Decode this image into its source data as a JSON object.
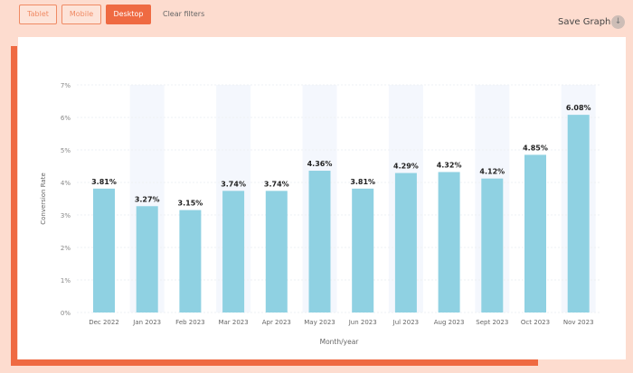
{
  "filters": {
    "tablet": "Tablet",
    "mobile": "Mobile",
    "desktop": "Desktop",
    "clear": "Clear filters",
    "active": "Desktop"
  },
  "save_graph": {
    "label": "Save Graph",
    "icon": "download-icon"
  },
  "colors": {
    "accent": "#ef6a42",
    "bar": "#8fd1e2",
    "band": "#f4f7fd"
  },
  "chart_data": {
    "type": "bar",
    "title": "",
    "xlabel": "Month/year",
    "ylabel": "Conversion Rate",
    "ylim": [
      0,
      7
    ],
    "yticks": [
      "0%",
      "1%",
      "2%",
      "3%",
      "4%",
      "5%",
      "6%",
      "7%"
    ],
    "categories": [
      "Dec 2022",
      "Jan 2023",
      "Feb 2023",
      "Mar 2023",
      "Apr 2023",
      "May 2023",
      "Jun 2023",
      "Jul 2023",
      "Aug 2023",
      "Sept 2023",
      "Oct 2023",
      "Nov 2023"
    ],
    "values": [
      3.81,
      3.27,
      3.15,
      3.74,
      3.74,
      4.36,
      3.81,
      4.29,
      4.32,
      4.12,
      4.85,
      6.08
    ],
    "labels": [
      "3.81%",
      "3.27%",
      "3.15%",
      "3.74%",
      "3.74%",
      "4.36%",
      "3.81%",
      "4.29%",
      "4.32%",
      "4.12%",
      "4.85%",
      "6.08%"
    ],
    "grid": true
  }
}
